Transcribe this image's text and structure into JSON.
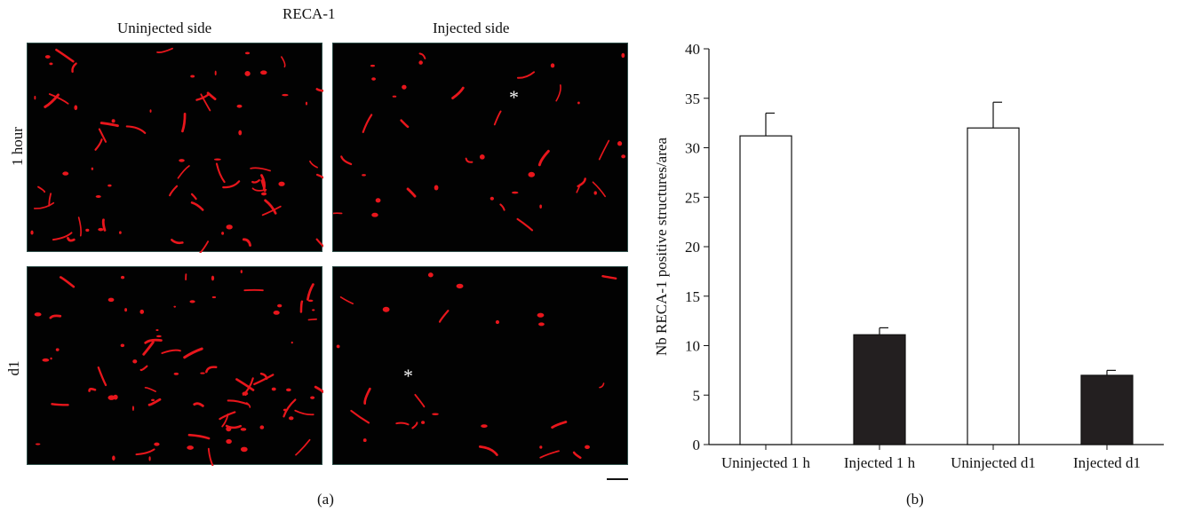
{
  "panel_a": {
    "stain_label": "RECA-1",
    "col_uninjected": "Uninjected side",
    "col_injected": "Injected side",
    "row_1hour": "1 hour",
    "row_d1": "d1",
    "asterisk": "*",
    "caption": "(a)",
    "vessel_color": "#e8161c"
  },
  "panel_b": {
    "caption": "(b)"
  },
  "chart_data": {
    "type": "bar",
    "categories": [
      "Uninjected 1 h",
      "Injected 1 h",
      "Uninjected d1",
      "Injected d1"
    ],
    "values": [
      31.2,
      11.1,
      32.0,
      7.0
    ],
    "errors": [
      2.3,
      0.7,
      2.6,
      0.5
    ],
    "bar_fills": [
      "#ffffff",
      "#231f20",
      "#ffffff",
      "#231f20"
    ],
    "ylabel": "Nb RECA-1 positive structures/area",
    "xlabel": "",
    "ylim": [
      0,
      40
    ],
    "yticks": [
      0,
      5,
      10,
      15,
      20,
      25,
      30,
      35,
      40
    ],
    "grid": false
  }
}
